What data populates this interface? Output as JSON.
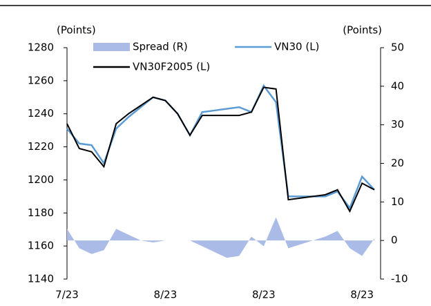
{
  "chart_data": {
    "type": "line",
    "y_label": "(Points)",
    "y2_label": "(Points)",
    "categories": [
      "7/23",
      null,
      null,
      null,
      null,
      null,
      null,
      null,
      "8/23",
      null,
      null,
      null,
      null,
      null,
      null,
      null,
      "8/23",
      null,
      null,
      null,
      null,
      null,
      null,
      null,
      "8/23",
      null
    ],
    "series": [
      {
        "name": "Spread (R)",
        "color": "#a9bbe6",
        "axis": "y2",
        "kind": "area",
        "values": [
          3,
          -2,
          -3.5,
          -2.5,
          3,
          1.5,
          0,
          -0.5,
          0,
          0,
          0,
          -1.5,
          -3,
          -4.5,
          -4,
          1,
          -1.5,
          6,
          -2,
          -1,
          0,
          1,
          2.5,
          -2,
          -4,
          0.5
        ]
      },
      {
        "name": "VN30 (L)",
        "color": "#5b9bd5",
        "values": [
          1231,
          1222,
          1221,
          1210,
          1231,
          1238,
          1244,
          1250,
          1248,
          1240,
          1227,
          1241,
          1242,
          1243,
          1244,
          1241,
          1257,
          1247,
          1190,
          1190,
          1190,
          1190,
          1193,
          1183,
          1202,
          1194
        ]
      },
      {
        "name": "VN30F2005 (L)",
        "color": "#000000",
        "values": [
          1234,
          1219,
          1217,
          1208,
          1234,
          1240,
          1245,
          1250,
          1248,
          1240,
          1227,
          1239,
          1239,
          1239,
          1239,
          1241,
          1256,
          1255,
          1188,
          1189,
          1190,
          1191,
          1194,
          1181,
          1198,
          1194
        ]
      }
    ],
    "ylim": [
      1140,
      1280
    ],
    "yticks": [
      1140,
      1160,
      1180,
      1200,
      1220,
      1240,
      1260,
      1280
    ],
    "y2lim": [
      -10,
      50
    ],
    "y2ticks": [
      -10,
      0,
      10,
      20,
      30,
      40,
      50
    ]
  }
}
